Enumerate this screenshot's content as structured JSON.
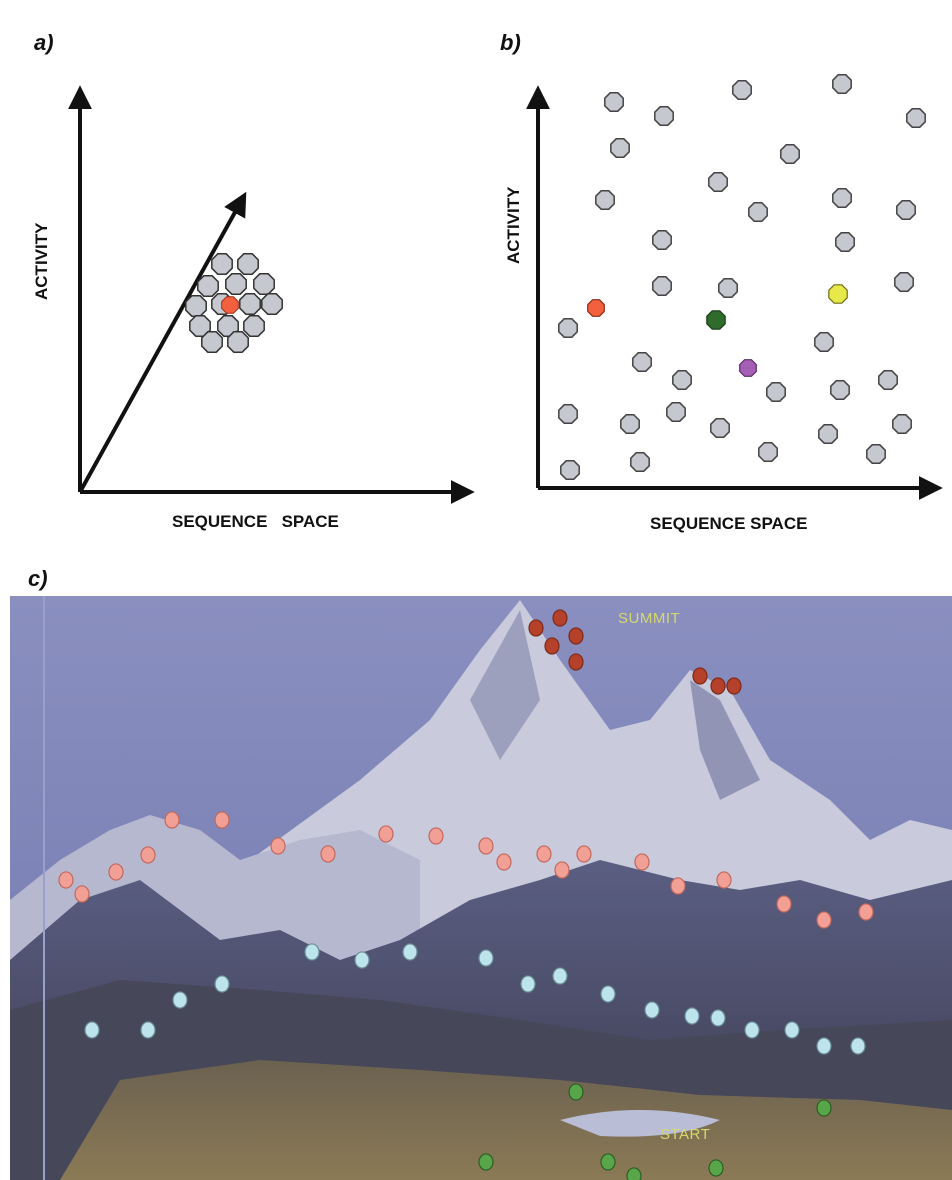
{
  "panel_a": {
    "label": "a)",
    "x_axis_label": "SEQUENCE   SPACE",
    "y_axis_label": "ACTIVITY"
  },
  "panel_b": {
    "label": "b)",
    "x_axis_label": "SEQUENCE SPACE",
    "y_axis_label": "ACTIVITY"
  },
  "panel_c": {
    "label": "c)",
    "summit_label": "SUMMIT",
    "start_label": "START"
  },
  "colors": {
    "grey_point": "#c6c8cf",
    "red_point": "#f2603e",
    "green_point": "#2f6b2a",
    "yellow_point": "#e7e84a",
    "purple_point": "#a45fb4",
    "summit_points": "#b5412b",
    "upper_points": "#f2a096",
    "middle_points": "#bde4ec",
    "start_points": "#58a54a",
    "sky": "#7a7fb3"
  }
}
